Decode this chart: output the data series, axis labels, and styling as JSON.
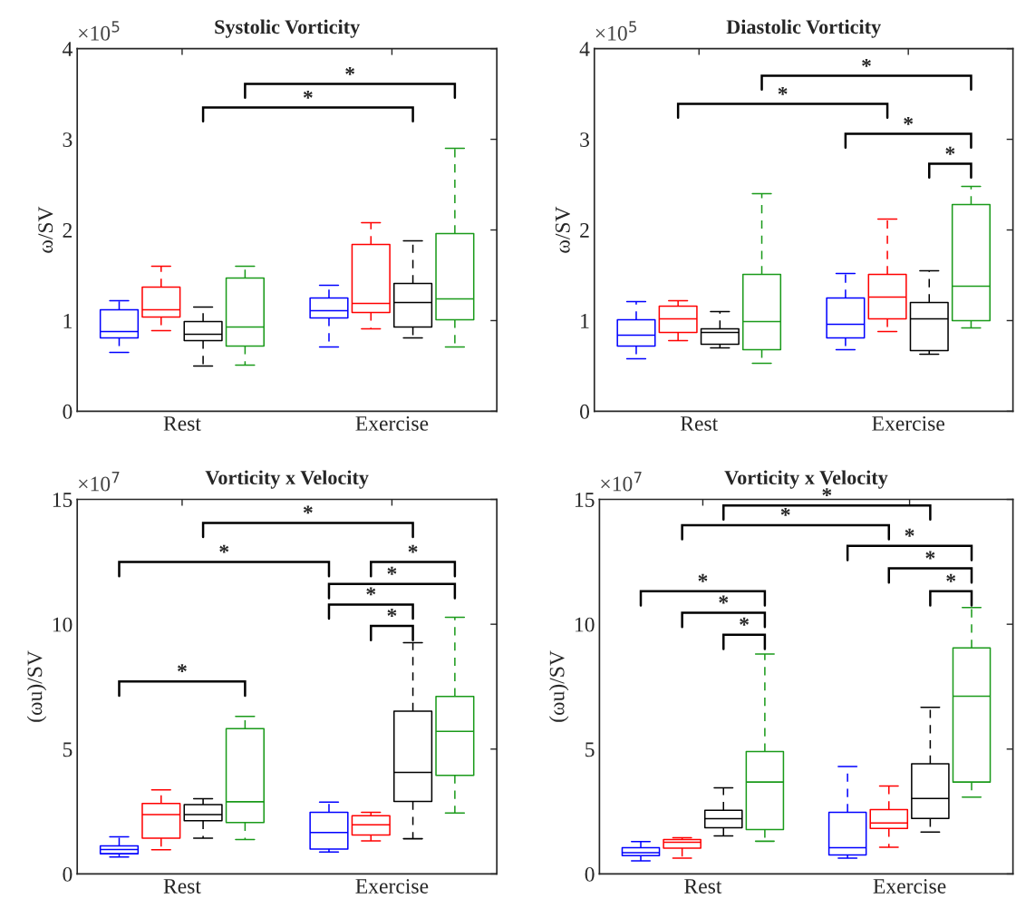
{
  "chart_data": [
    {
      "type": "box",
      "title": "Systolic Vorticity",
      "ylabel": "ω/SV",
      "categories": [
        "Rest",
        "Exercise"
      ],
      "ylim": [
        0,
        4
      ],
      "yticks": [
        0,
        1,
        2,
        3,
        4
      ],
      "annotations": [
        "×10$^{5}$",
        "*",
        "*"
      ],
      "series": [
        {
          "color": "#0000ff",
          "boxes": [
            {
              "low": 0.65,
              "q1": 0.81,
              "median": 0.88,
              "q3": 1.12,
              "high": 1.22
            },
            {
              "low": 0.71,
              "q1": 1.03,
              "median": 1.11,
              "q3": 1.25,
              "high": 1.39
            }
          ]
        },
        {
          "color": "#ff0000",
          "boxes": [
            {
              "low": 0.89,
              "q1": 1.04,
              "median": 1.12,
              "q3": 1.37,
              "high": 1.6
            },
            {
              "low": 0.91,
              "q1": 1.09,
              "median": 1.19,
              "q3": 1.84,
              "high": 2.08
            }
          ]
        },
        {
          "color": "#000000",
          "boxes": [
            {
              "low": 0.5,
              "q1": 0.78,
              "median": 0.85,
              "q3": 0.99,
              "high": 1.15
            },
            {
              "low": 0.81,
              "q1": 0.93,
              "median": 1.2,
              "q3": 1.41,
              "high": 1.88
            }
          ]
        },
        {
          "color": "#1a9a1a",
          "boxes": [
            {
              "low": 0.51,
              "q1": 0.72,
              "median": 0.93,
              "q3": 1.47,
              "high": 1.6
            },
            {
              "low": 0.71,
              "q1": 1.01,
              "median": 1.24,
              "q3": 1.96,
              "high": 2.9
            }
          ]
        }
      ]
    },
    {
      "type": "box",
      "title": "Diastolic Vorticity",
      "ylabel": "ω/SV",
      "categories": [
        "Rest",
        "Exercise"
      ],
      "ylim": [
        0,
        4
      ],
      "yticks": [
        0,
        1,
        2,
        3,
        4
      ],
      "annotations": [
        "×10$^{5}$",
        "*",
        "*",
        "*",
        "*"
      ],
      "series": [
        {
          "color": "#0000ff",
          "boxes": [
            {
              "low": 0.58,
              "q1": 0.72,
              "median": 0.84,
              "q3": 1.01,
              "high": 1.21
            },
            {
              "low": 0.68,
              "q1": 0.81,
              "median": 0.96,
              "q3": 1.25,
              "high": 1.52
            }
          ]
        },
        {
          "color": "#ff0000",
          "boxes": [
            {
              "low": 0.78,
              "q1": 0.87,
              "median": 1.02,
              "q3": 1.16,
              "high": 1.22
            },
            {
              "low": 0.88,
              "q1": 1.02,
              "median": 1.26,
              "q3": 1.51,
              "high": 2.12
            }
          ]
        },
        {
          "color": "#000000",
          "boxes": [
            {
              "low": 0.7,
              "q1": 0.74,
              "median": 0.87,
              "q3": 0.91,
              "high": 1.1
            },
            {
              "low": 0.63,
              "q1": 0.67,
              "median": 1.02,
              "q3": 1.2,
              "high": 1.55
            }
          ]
        },
        {
          "color": "#1a9a1a",
          "boxes": [
            {
              "low": 0.53,
              "q1": 0.68,
              "median": 0.99,
              "q3": 1.51,
              "high": 2.4
            },
            {
              "low": 0.92,
              "q1": 1.0,
              "median": 1.38,
              "q3": 2.28,
              "high": 2.48
            }
          ]
        }
      ]
    },
    {
      "type": "box",
      "title": "Vorticity x Velocity",
      "ylabel": "(ωu)/SV",
      "categories": [
        "Rest",
        "Exercise"
      ],
      "ylim": [
        0,
        15
      ],
      "yticks": [
        0,
        5,
        10,
        15
      ],
      "annotations": [
        "×10$^{7}$",
        "*",
        "*",
        "*",
        "*",
        "*",
        "*",
        "*"
      ],
      "series": [
        {
          "color": "#0000ff",
          "boxes": [
            {
              "low": 0.68,
              "q1": 0.81,
              "median": 0.98,
              "q3": 1.12,
              "high": 1.49
            },
            {
              "low": 0.88,
              "q1": 1.0,
              "median": 1.66,
              "q3": 2.47,
              "high": 2.88
            }
          ]
        },
        {
          "color": "#ff0000",
          "boxes": [
            {
              "low": 0.97,
              "q1": 1.43,
              "median": 2.38,
              "q3": 2.82,
              "high": 3.37
            },
            {
              "low": 1.32,
              "q1": 1.56,
              "median": 1.97,
              "q3": 2.33,
              "high": 2.47
            }
          ]
        },
        {
          "color": "#000000",
          "boxes": [
            {
              "low": 1.43,
              "q1": 2.13,
              "median": 2.38,
              "q3": 2.78,
              "high": 3.01
            },
            {
              "low": 1.41,
              "q1": 2.9,
              "median": 4.07,
              "q3": 6.52,
              "high": 9.26
            }
          ]
        },
        {
          "color": "#1a9a1a",
          "boxes": [
            {
              "low": 1.38,
              "q1": 2.06,
              "median": 2.89,
              "q3": 5.82,
              "high": 6.31
            },
            {
              "low": 2.44,
              "q1": 3.95,
              "median": 5.71,
              "q3": 7.11,
              "high": 10.28
            }
          ]
        }
      ]
    },
    {
      "type": "box",
      "title": "Vorticity x Velocity",
      "ylabel": "(ωu)/SV",
      "categories": [
        "Rest",
        "Exercise"
      ],
      "ylim": [
        0,
        15
      ],
      "yticks": [
        0,
        5,
        10,
        15
      ],
      "annotations": [
        "×10$^{7}$",
        "*",
        "*",
        "*",
        "*",
        "*",
        "*",
        "*",
        "*"
      ],
      "series": [
        {
          "color": "#0000ff",
          "boxes": [
            {
              "low": 0.52,
              "q1": 0.73,
              "median": 0.85,
              "q3": 1.05,
              "high": 1.3
            },
            {
              "low": 0.63,
              "q1": 0.76,
              "median": 1.05,
              "q3": 2.47,
              "high": 4.3
            }
          ]
        },
        {
          "color": "#ff0000",
          "boxes": [
            {
              "low": 0.63,
              "q1": 1.03,
              "median": 1.27,
              "q3": 1.38,
              "high": 1.45
            },
            {
              "low": 1.07,
              "q1": 1.82,
              "median": 2.04,
              "q3": 2.58,
              "high": 3.52
            }
          ]
        },
        {
          "color": "#000000",
          "boxes": [
            {
              "low": 1.52,
              "q1": 1.85,
              "median": 2.21,
              "q3": 2.55,
              "high": 3.45
            },
            {
              "low": 1.68,
              "q1": 2.22,
              "median": 3.02,
              "q3": 4.41,
              "high": 6.67
            }
          ]
        },
        {
          "color": "#1a9a1a",
          "boxes": [
            {
              "low": 1.31,
              "q1": 1.78,
              "median": 3.68,
              "q3": 4.9,
              "high": 8.81
            },
            {
              "low": 3.08,
              "q1": 3.68,
              "median": 7.12,
              "q3": 9.05,
              "high": 10.67
            }
          ]
        }
      ]
    }
  ]
}
